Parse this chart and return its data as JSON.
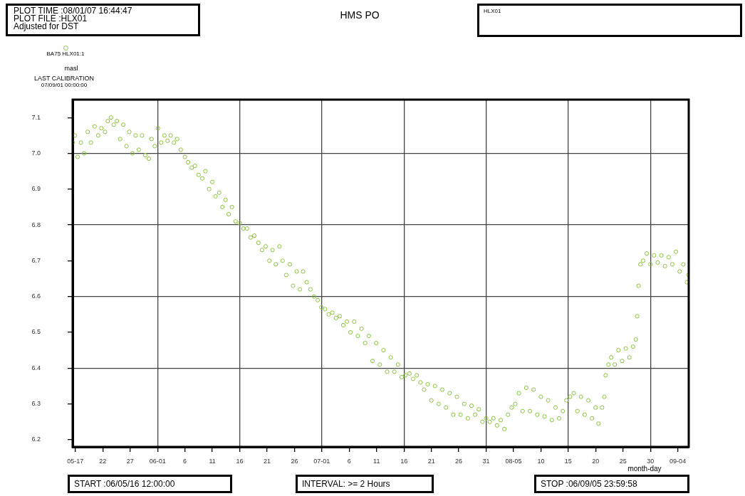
{
  "chart_data": {
    "type": "scatter",
    "title": "HMS PO",
    "xlabel": "month-day",
    "ylabel": "masl",
    "annotations": [
      "PLOT TIME :08/01/07 16:44:47",
      "PLOT FILE :HLX01",
      "Adjusted for DST",
      "HLX01",
      "LAST CALIBRATION",
      "07/09/01 00:00:00",
      "START :06/05/16 12:00:00",
      "INTERVAL: >= 2 Hours",
      "STOP :06/09/05 23:59:58"
    ],
    "legend": "top left",
    "marker": "circle",
    "grid": true,
    "xlim": [
      "--05-16T12:00",
      "--09-05T23:59"
    ],
    "xticks": [
      {
        "value": "--05-17",
        "label": "05-17"
      },
      {
        "value": "--05-22",
        "label": "22"
      },
      {
        "value": "--05-27",
        "label": "27"
      },
      {
        "value": "--06-01",
        "label": "06-01"
      },
      {
        "value": "--06-06",
        "label": "6"
      },
      {
        "value": "--06-11",
        "label": "11"
      },
      {
        "value": "--06-16",
        "label": "16"
      },
      {
        "value": "--06-21",
        "label": "21"
      },
      {
        "value": "--06-26",
        "label": "26"
      },
      {
        "value": "--07-01",
        "label": "07-01"
      },
      {
        "value": "--07-06",
        "label": "6"
      },
      {
        "value": "--07-11",
        "label": "11"
      },
      {
        "value": "--07-16",
        "label": "16"
      },
      {
        "value": "--07-21",
        "label": "21"
      },
      {
        "value": "--07-26",
        "label": "26"
      },
      {
        "value": "--07-31",
        "label": "31"
      },
      {
        "value": "--08-05",
        "label": "08-05"
      },
      {
        "value": "--08-10",
        "label": "10"
      },
      {
        "value": "--08-15",
        "label": "15"
      },
      {
        "value": "--08-20",
        "label": "20"
      },
      {
        "value": "--08-25",
        "label": "25"
      },
      {
        "value": "--08-30",
        "label": "30"
      },
      {
        "value": "--09-04",
        "label": "09-04"
      }
    ],
    "ylim": [
      6.18,
      7.15
    ],
    "yticks": [
      6.2,
      6.3,
      6.4,
      6.5,
      6.6,
      6.7,
      6.8,
      6.9,
      {
        "value": 7.0,
        "label": "7.0"
      },
      7.1
    ],
    "series": [
      {
        "name": "BA75 HLX01:1",
        "color": "#8cc43c",
        "x": [
          "--05-16T12:00",
          "--05-16T22:00",
          "--05-17T10:00",
          "--05-18T00:00",
          "--05-18T14:00",
          "--05-19T06:00",
          "--05-19T20:00",
          "--05-20T12:00",
          "--05-21T04:00",
          "--05-21T18:00",
          "--05-22T10:00",
          "--05-22T22:00",
          "--05-23T12:00",
          "--05-24T00:00",
          "--05-24T14:00",
          "--05-25T04:00",
          "--05-25T18:00",
          "--05-26T08:00",
          "--05-26T20:00",
          "--05-27T10:00",
          "--05-28T00:00",
          "--05-28T14:00",
          "--05-29T04:00",
          "--05-29T18:00",
          "--05-30T10:00",
          "--05-30T22:00",
          "--05-31T12:00",
          "--06-01T02:00",
          "--06-01T16:00",
          "--06-02T06:00",
          "--06-02T20:00",
          "--06-03T10:00",
          "--06-04T00:00",
          "--06-04T14:00",
          "--06-05T06:00",
          "--06-06T00:00",
          "--06-06T14:00",
          "--06-07T06:00",
          "--06-07T20:00",
          "--06-08T12:00",
          "--06-09T04:00",
          "--06-09T18:00",
          "--06-10T10:00",
          "--06-11T00:00",
          "--06-11T14:00",
          "--06-12T06:00",
          "--06-12T20:00",
          "--06-13T10:00",
          "--06-14T00:00",
          "--06-14T14:00",
          "--06-15T06:00",
          "--06-16T00:00",
          "--06-16T16:00",
          "--06-17T08:00",
          "--06-18T00:00",
          "--06-18T16:00",
          "--06-19T10:00",
          "--06-20T02:00",
          "--06-20T18:00",
          "--06-21T10:00",
          "--06-22T00:00",
          "--06-22T14:00",
          "--06-23T06:00",
          "--06-23T20:00",
          "--06-24T12:00",
          "--06-25T04:00",
          "--06-25T18:00",
          "--06-26T10:00",
          "--06-27T00:00",
          "--06-27T14:00",
          "--06-28T06:00",
          "--06-28T22:00",
          "--06-29T14:00",
          "--06-30T06:00",
          "--06-30T22:00",
          "--07-01T14:00",
          "--07-02T06:00",
          "--07-02T22:00",
          "--07-03T14:00",
          "--07-04T06:00",
          "--07-04T22:00",
          "--07-05T14:00",
          "--07-06T06:00",
          "--07-06T22:00",
          "--07-07T14:00",
          "--07-08T06:00",
          "--07-08T22:00",
          "--07-09T14:00",
          "--07-10T06:00",
          "--07-10T22:00",
          "--07-11T14:00",
          "--07-12T06:00",
          "--07-12T22:00",
          "--07-13T14:00",
          "--07-14T06:00",
          "--07-14T22:00",
          "--07-15T14:00",
          "--07-16T06:00",
          "--07-17T00:00",
          "--07-17T16:00",
          "--07-18T08:00",
          "--07-19T00:00",
          "--07-19T16:00",
          "--07-20T08:00",
          "--07-21T00:00",
          "--07-21T16:00",
          "--07-22T08:00",
          "--07-23T00:00",
          "--07-23T16:00",
          "--07-24T08:00",
          "--07-25T00:00",
          "--07-25T16:00",
          "--07-26T08:00",
          "--07-27T00:00",
          "--07-27T16:00",
          "--07-28T08:00",
          "--07-29T00:00",
          "--07-29T16:00",
          "--07-30T08:00",
          "--07-31T00:00",
          "--07-31T16:00",
          "--08-01T08:00",
          "--08-02T00:00",
          "--08-02T16:00",
          "--08-03T08:00",
          "--08-04T00:00",
          "--08-04T16:00",
          "--08-05T08:00",
          "--08-06T00:00",
          "--08-06T16:00",
          "--08-07T08:00",
          "--08-08T00:00",
          "--08-08T16:00",
          "--08-09T08:00",
          "--08-10T00:00",
          "--08-10T16:00",
          "--08-11T08:00",
          "--08-12T00:00",
          "--08-12T16:00",
          "--08-13T08:00",
          "--08-14T00:00",
          "--08-14T16:00",
          "--08-15T08:00",
          "--08-16T00:00",
          "--08-16T16:00",
          "--08-17T08:00",
          "--08-18T00:00",
          "--08-18T16:00",
          "--08-19T08:00",
          "--08-20T00:00",
          "--08-20T12:00",
          "--08-21T04:00",
          "--08-21T14:00",
          "--08-21T20:00",
          "--08-22T08:00",
          "--08-22T20:00",
          "--08-23T12:00",
          "--08-24T04:00",
          "--08-24T20:00",
          "--08-25T12:00",
          "--08-26T04:00",
          "--08-26T20:00",
          "--08-27T08:00",
          "--08-27T14:00",
          "--08-27T20:00",
          "--08-28T04:00",
          "--08-28T16:00",
          "--08-29T08:00",
          "--08-30T00:00",
          "--08-30T16:00",
          "--08-31T08:00",
          "--09-01T00:00",
          "--09-01T16:00",
          "--09-02T08:00",
          "--09-03T00:00",
          "--09-03T16:00",
          "--09-04T08:00",
          "--09-05T00:00",
          "--09-05T16:00",
          "--09-05T23:00"
        ],
        "values": [
          7.03,
          7.05,
          6.99,
          7.03,
          7.0,
          7.06,
          7.03,
          7.075,
          7.05,
          7.07,
          7.06,
          7.09,
          7.1,
          7.08,
          7.09,
          7.04,
          7.08,
          7.02,
          7.06,
          7.0,
          7.05,
          7.01,
          7.05,
          6.995,
          6.985,
          7.04,
          7.02,
          7.07,
          7.03,
          7.05,
          7.035,
          7.05,
          7.03,
          7.04,
          7.01,
          6.99,
          6.975,
          6.96,
          6.965,
          6.94,
          6.93,
          6.95,
          6.9,
          6.92,
          6.88,
          6.89,
          6.85,
          6.87,
          6.83,
          6.85,
          6.81,
          6.805,
          6.79,
          6.79,
          6.765,
          6.77,
          6.75,
          6.73,
          6.74,
          6.7,
          6.73,
          6.69,
          6.74,
          6.7,
          6.66,
          6.69,
          6.63,
          6.67,
          6.62,
          6.67,
          6.64,
          6.62,
          6.6,
          6.59,
          6.57,
          6.565,
          6.55,
          6.555,
          6.54,
          6.545,
          6.52,
          6.53,
          6.5,
          6.53,
          6.49,
          6.51,
          6.47,
          6.49,
          6.42,
          6.47,
          6.41,
          6.45,
          6.39,
          6.43,
          6.39,
          6.41,
          6.375,
          6.38,
          6.385,
          6.37,
          6.38,
          6.36,
          6.34,
          6.355,
          6.31,
          6.35,
          6.3,
          6.34,
          6.29,
          6.33,
          6.27,
          6.32,
          6.27,
          6.3,
          6.26,
          6.295,
          6.27,
          6.285,
          6.25,
          6.26,
          6.25,
          6.26,
          6.24,
          6.255,
          6.23,
          6.27,
          6.29,
          6.3,
          6.33,
          6.28,
          6.345,
          6.28,
          6.34,
          6.27,
          6.32,
          6.265,
          6.31,
          6.255,
          6.29,
          6.26,
          6.28,
          6.31,
          6.32,
          6.33,
          6.28,
          6.32,
          6.27,
          6.31,
          6.26,
          6.29,
          6.245,
          6.29,
          6.32,
          6.38,
          6.41,
          6.43,
          6.41,
          6.45,
          6.42,
          6.455,
          6.43,
          6.46,
          6.48,
          6.545,
          6.63,
          6.69,
          6.7,
          6.72,
          6.69,
          6.715,
          6.695,
          6.715,
          6.685,
          6.71,
          6.69,
          6.725,
          6.67,
          6.69,
          6.64,
          6.66
        ]
      }
    ]
  }
}
